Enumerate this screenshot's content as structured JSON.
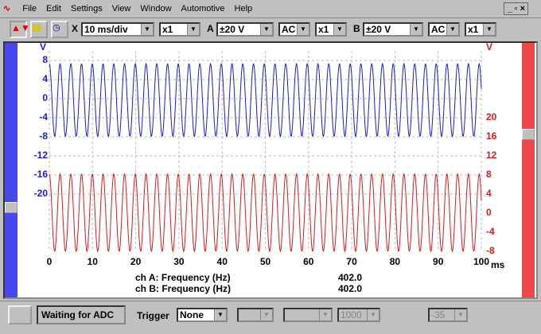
{
  "menu": {
    "items": [
      "File",
      "Edit",
      "Settings",
      "View",
      "Window",
      "Automotive",
      "Help"
    ]
  },
  "toolbar": {
    "x_label": "X",
    "timebase": "10 ms/div",
    "x_mult": "x1",
    "a_label": "A",
    "a_range": "±20 V",
    "a_coupling": "AC",
    "a_mult": "x1",
    "b_label": "B",
    "b_range": "±20 V",
    "b_coupling": "AC",
    "b_mult": "x1"
  },
  "chart_data": {
    "type": "line",
    "x_label": "ms",
    "y_label": "V",
    "y2_label": "V",
    "xlim": [
      0,
      100
    ],
    "xticks": [
      0,
      10,
      20,
      30,
      40,
      50,
      60,
      70,
      80,
      90,
      100
    ],
    "ylim": [
      -32,
      10
    ],
    "yticks": [
      8,
      4,
      0,
      -4,
      -8,
      -12,
      -16,
      -20
    ],
    "y2lim": [
      -8,
      34
    ],
    "y2ticks": [
      20,
      16,
      12,
      8,
      4,
      0,
      -4,
      -8
    ],
    "grid": true,
    "series": [
      {
        "name": "A",
        "color": "#1a1adc",
        "amplitude": 7.6,
        "offset": -0.3
      },
      {
        "name": "B",
        "color": "#e01818",
        "amplitude": 8.1,
        "offset": 0.1,
        "axis": "y2"
      }
    ],
    "measurements": [
      {
        "label": "ch A: Frequency (Hz)",
        "value": 402.0,
        "value_label": "402.0"
      },
      {
        "label": "ch B: Frequency (Hz)",
        "value": 402.0,
        "value_label": "402.0"
      }
    ]
  },
  "status": {
    "message": "Waiting for ADC",
    "trigger_label": "Trigger",
    "trigger_mode": "None",
    "delay": "1000",
    "threshold": "-35"
  }
}
